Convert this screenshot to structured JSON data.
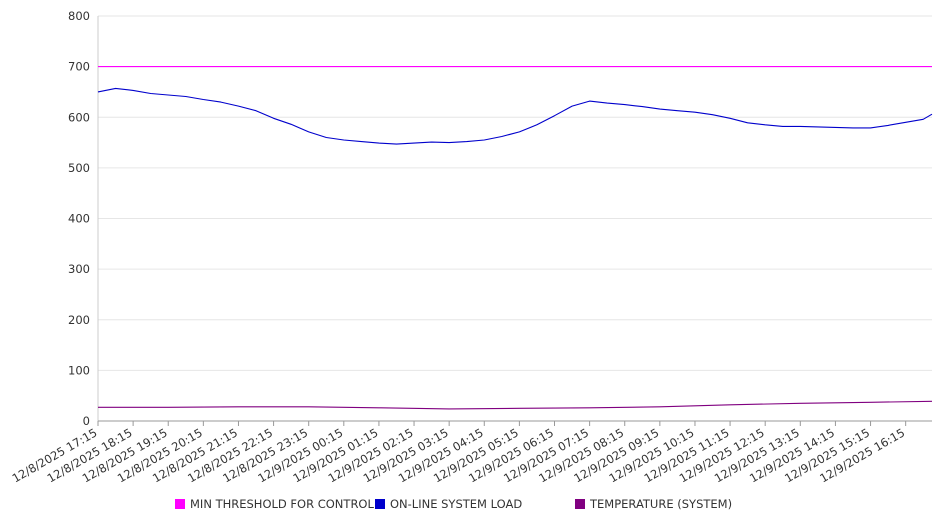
{
  "chart_data": {
    "type": "line",
    "title": "",
    "xlabel": "",
    "ylabel": "",
    "ylim": [
      0,
      800
    ],
    "yticks": [
      0,
      100,
      200,
      300,
      400,
      500,
      600,
      700,
      800
    ],
    "grid": true,
    "legend_position": "bottom",
    "x_labels": [
      "12/8/2025 17:15",
      "12/8/2025 18:15",
      "12/8/2025 19:15",
      "12/8/2025 20:15",
      "12/8/2025 21:15",
      "12/8/2025 22:15",
      "12/8/2025 23:15",
      "12/9/2025 00:15",
      "12/9/2025 01:15",
      "12/9/2025 02:15",
      "12/9/2025 03:15",
      "12/9/2025 04:15",
      "12/9/2025 05:15",
      "12/9/2025 06:15",
      "12/9/2025 07:15",
      "12/9/2025 08:15",
      "12/9/2025 09:15",
      "12/9/2025 10:15",
      "12/9/2025 11:15",
      "12/9/2025 12:15",
      "12/9/2025 13:15",
      "12/9/2025 14:15",
      "12/9/2025 15:15",
      "12/9/2025 16:15"
    ],
    "x_start": "12/8/2025 17:15",
    "x_end": "12/9/2025 17:00",
    "series": [
      {
        "name": "MIN THRESHOLD FOR CONTROL",
        "color": "#ff00ff",
        "x": [
          "12/8/2025 17:15",
          "12/9/2025 17:00"
        ],
        "values": [
          700,
          700
        ]
      },
      {
        "name": "ON-LINE SYSTEM LOAD",
        "color": "#0000cc",
        "x": [
          "12/8/2025 17:15",
          "12/8/2025 17:45",
          "12/8/2025 18:15",
          "12/8/2025 18:45",
          "12/8/2025 19:15",
          "12/8/2025 19:45",
          "12/8/2025 20:15",
          "12/8/2025 20:45",
          "12/8/2025 21:15",
          "12/8/2025 21:45",
          "12/8/2025 22:15",
          "12/8/2025 22:45",
          "12/8/2025 23:15",
          "12/8/2025 23:45",
          "12/9/2025 00:15",
          "12/9/2025 00:45",
          "12/9/2025 01:15",
          "12/9/2025 01:45",
          "12/9/2025 02:15",
          "12/9/2025 02:45",
          "12/9/2025 03:15",
          "12/9/2025 03:45",
          "12/9/2025 04:15",
          "12/9/2025 04:45",
          "12/9/2025 05:15",
          "12/9/2025 05:45",
          "12/9/2025 06:15",
          "12/9/2025 06:45",
          "12/9/2025 07:15",
          "12/9/2025 07:45",
          "12/9/2025 08:15",
          "12/9/2025 08:45",
          "12/9/2025 09:15",
          "12/9/2025 09:45",
          "12/9/2025 10:15",
          "12/9/2025 10:45",
          "12/9/2025 11:15",
          "12/9/2025 11:45",
          "12/9/2025 12:15",
          "12/9/2025 12:45",
          "12/9/2025 13:15",
          "12/9/2025 13:45",
          "12/9/2025 14:15",
          "12/9/2025 14:45",
          "12/9/2025 15:15",
          "12/9/2025 15:45",
          "12/9/2025 16:15",
          "12/9/2025 16:45",
          "12/9/2025 17:00"
        ],
        "values": [
          650,
          657,
          653,
          647,
          644,
          641,
          635,
          630,
          622,
          613,
          598,
          586,
          571,
          560,
          555,
          552,
          549,
          547,
          549,
          551,
          550,
          552,
          555,
          562,
          571,
          585,
          603,
          622,
          632,
          628,
          625,
          621,
          616,
          613,
          610,
          605,
          598,
          589,
          585,
          582,
          582,
          581,
          580,
          579,
          579,
          584,
          590,
          596,
          606
        ]
      },
      {
        "name": "TEMPERATURE (SYSTEM)",
        "color": "#800080",
        "x": [
          "12/8/2025 17:15",
          "12/8/2025 19:15",
          "12/8/2025 21:15",
          "12/8/2025 23:15",
          "12/9/2025 01:15",
          "12/9/2025 03:15",
          "12/9/2025 05:15",
          "12/9/2025 07:15",
          "12/9/2025 09:15",
          "12/9/2025 11:15",
          "12/9/2025 13:15",
          "12/9/2025 15:15",
          "12/9/2025 17:00"
        ],
        "values": [
          27,
          27,
          28,
          28,
          26,
          24,
          25,
          26,
          28,
          32,
          35,
          37,
          39
        ]
      }
    ]
  }
}
